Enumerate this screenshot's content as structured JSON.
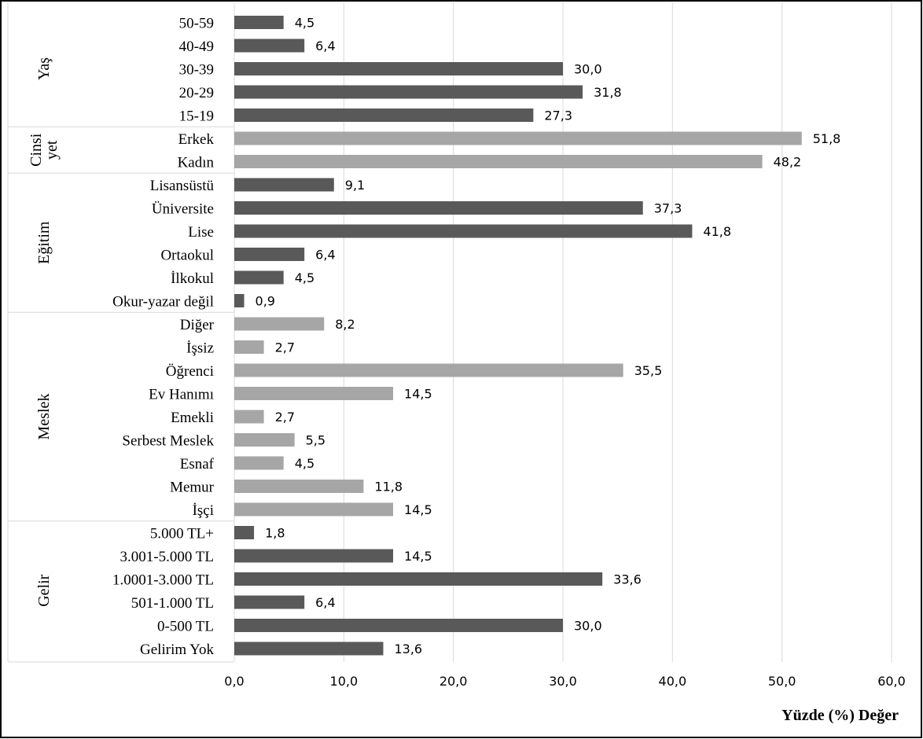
{
  "chart_data": {
    "type": "bar",
    "orientation": "horizontal",
    "xlabel": "Yüzde (%) Değer",
    "ylabel": "",
    "xlim": [
      0,
      60
    ],
    "xticks": [
      0,
      10,
      20,
      30,
      40,
      50,
      60
    ],
    "tick_labels": [
      "0,0",
      "10,0",
      "20,0",
      "30,0",
      "40,0",
      "50,0",
      "60,0"
    ],
    "grid": "vertical",
    "colors": {
      "dark": "#595959",
      "light": "#a6a6a6"
    },
    "groups": [
      {
        "label": "Yaş",
        "label_lines": [
          "Yaş"
        ],
        "shade": "dark",
        "categories": [
          "50-59",
          "40-49",
          "30-39",
          "20-29",
          "15-19"
        ],
        "values": [
          4.5,
          6.4,
          30.0,
          31.8,
          27.3
        ],
        "value_labels": [
          "4,5",
          "6,4",
          "30,0",
          "31,8",
          "27,3"
        ]
      },
      {
        "label": "Cinsiyet",
        "label_lines": [
          "Cinsi",
          "yet"
        ],
        "shade": "light",
        "categories": [
          "Erkek",
          "Kadın"
        ],
        "values": [
          51.8,
          48.2
        ],
        "value_labels": [
          "51,8",
          "48,2"
        ]
      },
      {
        "label": "Eğitim",
        "label_lines": [
          "Eğitim"
        ],
        "shade": "dark",
        "categories": [
          "Lisansüstü",
          "Üniversite",
          "Lise",
          "Ortaokul",
          "İlkokul",
          "Okur-yazar değil"
        ],
        "values": [
          9.1,
          37.3,
          41.8,
          6.4,
          4.5,
          0.9
        ],
        "value_labels": [
          "9,1",
          "37,3",
          "41,8",
          "6,4",
          "4,5",
          "0,9"
        ]
      },
      {
        "label": "Meslek",
        "label_lines": [
          "Meslek"
        ],
        "shade": "light",
        "categories": [
          "Diğer",
          "İşsiz",
          "Öğrenci",
          "Ev Hanımı",
          "Emekli",
          "Serbest Meslek",
          "Esnaf",
          "Memur",
          "İşçi"
        ],
        "values": [
          8.2,
          2.7,
          35.5,
          14.5,
          2.7,
          5.5,
          4.5,
          11.8,
          14.5
        ],
        "value_labels": [
          "8,2",
          "2,7",
          "35,5",
          "14,5",
          "2,7",
          "5,5",
          "4,5",
          "11,8",
          "14,5"
        ]
      },
      {
        "label": "Gelir",
        "label_lines": [
          "Gelir"
        ],
        "shade": "dark",
        "categories": [
          "5.000 TL+",
          "3.001-5.000 TL",
          "1.0001-3.000 TL",
          "501-1.000 TL",
          "0-500 TL",
          "Gelirim Yok"
        ],
        "values": [
          1.8,
          14.5,
          33.6,
          6.4,
          30.0,
          13.6
        ],
        "value_labels": [
          "1,8",
          "14,5",
          "33,6",
          "6,4",
          "30,0",
          "13,6"
        ]
      }
    ]
  }
}
